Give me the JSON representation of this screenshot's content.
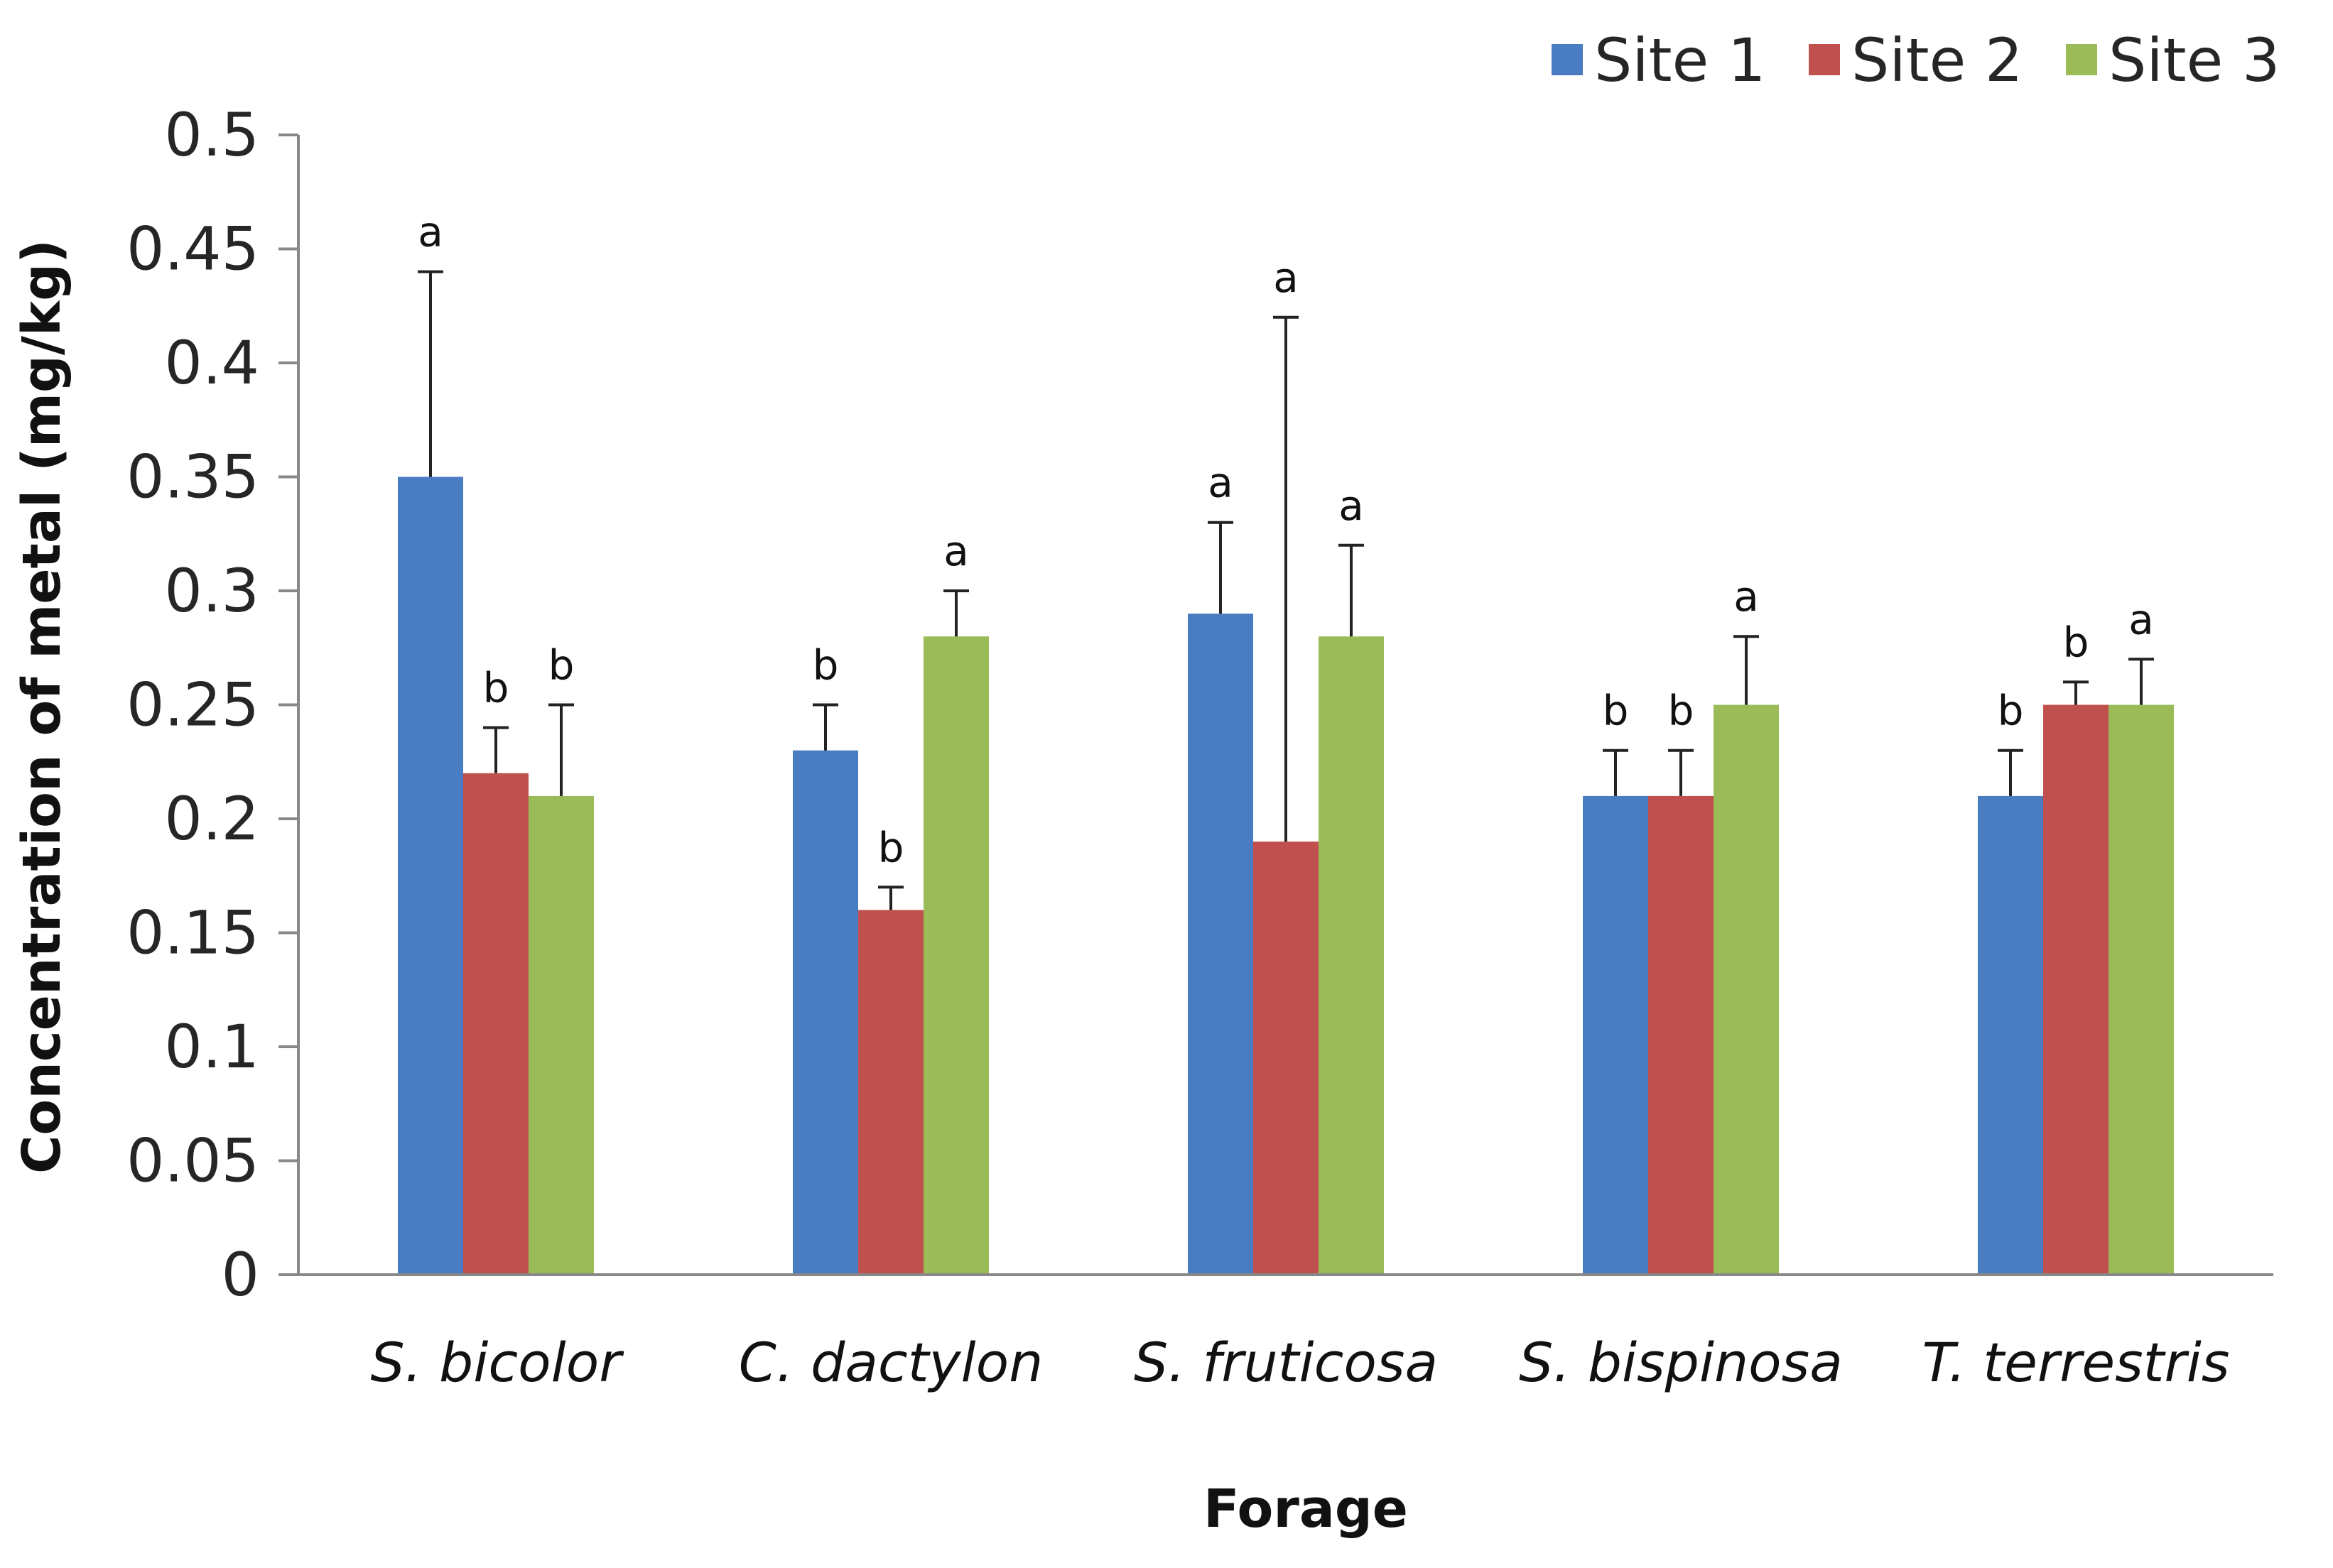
{
  "chart_data": {
    "type": "bar",
    "title": "",
    "xlabel": "Forage",
    "ylabel": "Concentration of metal (mg/kg)",
    "ylim": [
      0,
      0.5
    ],
    "yticks": [
      "0",
      "0.05",
      "0.1",
      "0.15",
      "0.2",
      "0.25",
      "0.3",
      "0.35",
      "0.4",
      "0.45",
      "0.5"
    ],
    "ytick_values": [
      0,
      0.05,
      0.1,
      0.15,
      0.2,
      0.25,
      0.3,
      0.35,
      0.4,
      0.45,
      0.5
    ],
    "grid": false,
    "legend_position": "top-right",
    "categories": [
      "S. bicolor",
      "C. dactylon",
      "S. fruticosa",
      "S. bispinosa",
      "T. terrestris"
    ],
    "series": [
      {
        "name": "Site 1",
        "color": "#4A7CC2",
        "values": [
          0.35,
          0.23,
          0.29,
          0.21,
          0.21
        ],
        "error_upper": [
          0.44,
          0.25,
          0.33,
          0.23,
          0.23
        ],
        "labels": [
          "a",
          "b",
          "a",
          "b",
          "b"
        ]
      },
      {
        "name": "Site 2",
        "color": "#C0504D",
        "values": [
          0.22,
          0.16,
          0.19,
          0.21,
          0.25
        ],
        "error_upper": [
          0.24,
          0.17,
          0.42,
          0.23,
          0.26
        ],
        "labels": [
          "b",
          "b",
          "a",
          "b",
          "b"
        ]
      },
      {
        "name": "Site 3",
        "color": "#9BBB59",
        "values": [
          0.21,
          0.28,
          0.28,
          0.25,
          0.25
        ],
        "error_upper": [
          0.25,
          0.3,
          0.32,
          0.28,
          0.27
        ],
        "labels": [
          "b",
          "a",
          "a",
          "a",
          "a"
        ]
      }
    ]
  }
}
